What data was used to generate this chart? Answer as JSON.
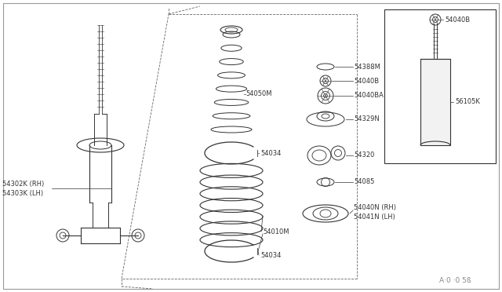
{
  "bg_color": "#ffffff",
  "line_color": "#333333",
  "fig_w": 6.4,
  "fig_h": 3.72,
  "dpi": 100,
  "watermark": "A·0 ·0 5ß",
  "label_fs": 6.0,
  "parts_labels": {
    "left_rh": "54302K (RH)",
    "left_lh": "54303K (LH)",
    "bump": "54050M",
    "ring_top": "54034",
    "ring_bot": "54034",
    "spring": "54010M",
    "p1": "54388M",
    "p2": "54040B",
    "p3": "54040BA",
    "p4": "54329N",
    "p5": "54320",
    "p6": "54085",
    "p7rh": "54040N (RH)",
    "p7lh": "54041N (LH)",
    "inset_top": "54040B",
    "inset_body": "56105K"
  }
}
